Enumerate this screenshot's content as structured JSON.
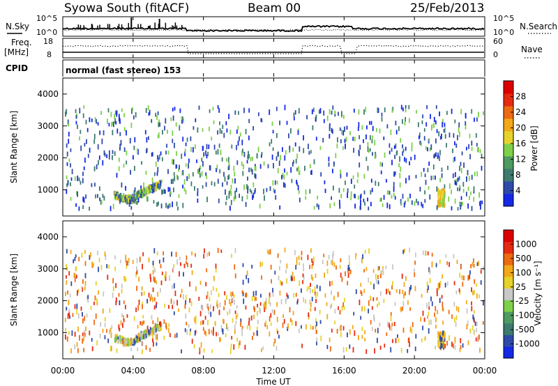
{
  "header": {
    "station": "Syowa South (fitACF)",
    "beam": "Beam 00",
    "date": "25/Feb/2013"
  },
  "noise_panel": {
    "left_label": "N.Sky",
    "right_label": "N.Search",
    "left_ticks": [
      "10^5",
      "10^0"
    ],
    "right_ticks": [
      "10^5",
      "10^0"
    ]
  },
  "freq_panel": {
    "left_label_line1": "Freq.",
    "left_label_line2": "[MHz]",
    "right_label": "Nave",
    "left_ticks": [
      "18",
      "8"
    ],
    "right_ticks": [
      "60",
      "0"
    ]
  },
  "cpid": {
    "label": "CPID",
    "text": "normal (fast stereo) 153"
  },
  "x_axis": {
    "label": "Time UT",
    "ticks": [
      "00:00",
      "04:00",
      "08:00",
      "12:00",
      "16:00",
      "20:00",
      "00:00"
    ]
  },
  "chart_data": [
    {
      "type": "heatmap",
      "panel": "power",
      "ylabel": "Slant Range [km]",
      "ylim": [
        180,
        4500
      ],
      "yticks": [
        1000,
        2000,
        3000,
        4000
      ],
      "xlim_hours": [
        0,
        24
      ],
      "colorbar": {
        "label": "Power [dB]",
        "ticks": [
          "4",
          "8",
          "12",
          "16",
          "20",
          "24",
          "28"
        ],
        "colors": [
          "#1428e6",
          "#2e4aa8",
          "#3e7a6e",
          "#4e9a60",
          "#7ed04a",
          "#e6d22a",
          "#f2a818",
          "#ee6a10",
          "#e62a10",
          "#dd0000"
        ]
      },
      "features": [
        {
          "name": "arc",
          "t_start": 2.9,
          "t_end": 5.6,
          "range_start": 800,
          "range_end": 1200,
          "colors": [
            "#2e4aa8",
            "#3e7a6e",
            "#7ed04a",
            "#e6d22a"
          ]
        },
        {
          "name": "patch",
          "t_start": 21.3,
          "t_end": 21.7,
          "range_start": 500,
          "range_end": 1000,
          "colors": [
            "#e6d22a",
            "#7ed04a",
            "#f2a818"
          ]
        },
        {
          "name": "noise",
          "t_start": 0.1,
          "t_end": 23.9,
          "range_start": 400,
          "range_end": 3600,
          "colors": [
            "#2e4aa8",
            "#1428e6",
            "#3e7a6e",
            "#7ed04a"
          ]
        }
      ]
    },
    {
      "type": "heatmap",
      "panel": "velocity",
      "ylabel": "Slant Range [km]",
      "ylim": [
        180,
        4500
      ],
      "yticks": [
        1000,
        2000,
        3000,
        4000
      ],
      "xlim_hours": [
        0,
        24
      ],
      "colorbar": {
        "label": "Velocity [m s⁻¹]",
        "ticks": [
          "1000",
          "500",
          "100",
          "25",
          "-25",
          "-100",
          "-500",
          "-1000"
        ],
        "colors": [
          "#1428e6",
          "#2e4aa8",
          "#3e7a6e",
          "#4e9a60",
          "#7ed04a",
          "#c8c8c8",
          "#e6d22a",
          "#f2a818",
          "#ee6a10",
          "#e62a10",
          "#dd0000"
        ]
      },
      "features": [
        {
          "name": "arc",
          "t_start": 2.9,
          "t_end": 5.6,
          "range_start": 800,
          "range_end": 1200,
          "colors": [
            "#2e4aa8",
            "#c8c8c8",
            "#7ed04a",
            "#e6d22a",
            "#f2a818"
          ]
        },
        {
          "name": "patch",
          "t_start": 21.3,
          "t_end": 21.7,
          "range_start": 500,
          "range_end": 1000,
          "colors": [
            "#2e4aa8",
            "#f2a818",
            "#e6d22a"
          ]
        },
        {
          "name": "noise",
          "t_start": 0.1,
          "t_end": 23.9,
          "range_start": 400,
          "range_end": 3600,
          "colors": [
            "#e6d22a",
            "#f2a818",
            "#e62a10",
            "#2e4aa8",
            "#c8c8c8",
            "#ee6a10"
          ]
        }
      ]
    }
  ]
}
